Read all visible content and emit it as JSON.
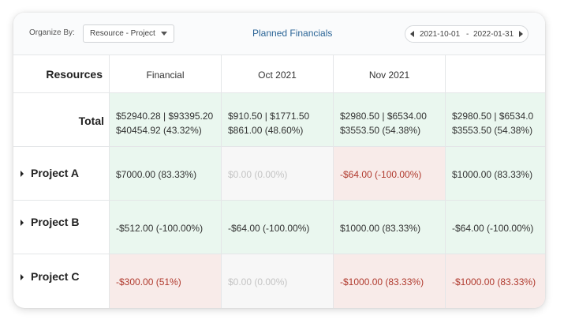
{
  "toolbar": {
    "organize_label": "Organize By:",
    "organize_value": "Resource - Project",
    "title": "Planned Financials",
    "date_start": "2021-10-01",
    "date_sep": "-",
    "date_end": "2022-01-31"
  },
  "table": {
    "row_header": "Resources",
    "columns": [
      "Financial",
      "Oct 2021",
      "Nov 2021",
      ""
    ],
    "total": {
      "label": "Total",
      "cells": [
        {
          "line1": "$52940.28 | $93395.20",
          "line2": "$40454.92 (43.32%)",
          "status": "green"
        },
        {
          "line1": "$910.50 | $1771.50",
          "line2": "$861.00 (48.60%)",
          "status": "green"
        },
        {
          "line1": "$2980.50 | $6534.00",
          "line2": "$3553.50 (54.38%)",
          "status": "green"
        },
        {
          "line1": "$2980.50 | $6534.0",
          "line2": "$3553.50 (54.38%)",
          "status": "green"
        }
      ]
    },
    "projects": [
      {
        "label": "Project A",
        "cells": [
          {
            "value": "$7000.00 (83.33%)",
            "status": "green"
          },
          {
            "value": "$0.00 (0.00%)",
            "status": "grey"
          },
          {
            "value": "-$64.00 (-100.00%)",
            "status": "red"
          },
          {
            "value": "$1000.00 (83.33%)",
            "status": "green"
          }
        ]
      },
      {
        "label": "Project B",
        "cells": [
          {
            "value": "-$512.00 (-100.00%)",
            "status": "green"
          },
          {
            "value": "-$64.00 (-100.00%)",
            "status": "green"
          },
          {
            "value": "$1000.00 (83.33%)",
            "status": "green"
          },
          {
            "value": "-$64.00 (-100.00%)",
            "status": "green"
          }
        ]
      },
      {
        "label": "Project C",
        "cells": [
          {
            "value": "-$300.00 (51%)",
            "status": "red"
          },
          {
            "value": "$0.00 (0.00%)",
            "status": "grey"
          },
          {
            "value": "-$1000.00 (83.33%)",
            "status": "red"
          },
          {
            "value": "-$1000.00 (83.33%)",
            "status": "red"
          }
        ]
      }
    ]
  }
}
